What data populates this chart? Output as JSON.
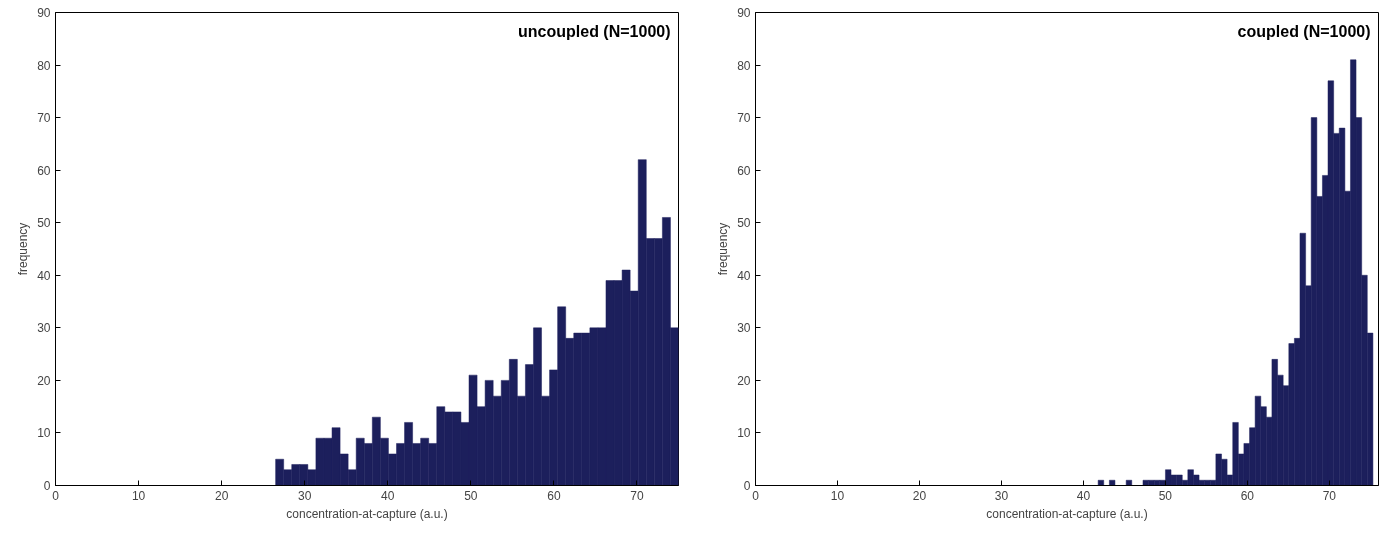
{
  "chart_data": [
    {
      "type": "histogram",
      "xlabel": "concentration-at-capture (a.u.)",
      "ylabel": "frequency",
      "annotations": [
        "uncoupled (N=1000)"
      ],
      "color": "#1c1f5c",
      "bins": [
        26.5,
        27.47,
        28.44,
        29.41,
        30.38,
        31.35,
        32.32,
        33.29,
        34.26,
        35.23,
        36.2,
        37.17,
        38.14,
        39.11,
        40.08,
        41.05,
        42.02,
        42.99,
        43.96,
        44.93,
        45.9,
        46.87,
        47.84,
        48.81,
        49.78,
        50.75,
        51.72,
        52.69,
        53.66,
        54.63,
        55.6,
        56.57,
        57.54,
        58.51,
        59.48,
        60.45,
        61.42,
        62.39,
        63.36,
        64.33,
        65.3,
        66.27,
        67.24,
        68.21,
        69.18,
        70.15,
        71.12,
        72.09,
        73.06,
        74.03,
        75.0
      ],
      "values": [
        5,
        3,
        4,
        4,
        3,
        9,
        9,
        11,
        6,
        3,
        9,
        8,
        13,
        9,
        6,
        8,
        12,
        8,
        9,
        8,
        15,
        14,
        14,
        12,
        21,
        15,
        20,
        17,
        20,
        24,
        17,
        23,
        30,
        17,
        22,
        34,
        28,
        29,
        29,
        30,
        30,
        39,
        39,
        41,
        37,
        62,
        47,
        47,
        51,
        30
      ],
      "xlim": [
        0,
        75
      ],
      "ylim": [
        0,
        90
      ],
      "xticks": [
        0,
        10,
        20,
        30,
        40,
        50,
        60,
        70
      ],
      "yticks": [
        0,
        10,
        20,
        30,
        40,
        50,
        60,
        70,
        80,
        90
      ],
      "grid": false
    },
    {
      "type": "histogram",
      "xlabel": "concentration-at-capture (a.u.)",
      "ylabel": "frequency",
      "annotations": [
        "coupled (N=1000)"
      ],
      "color": "#1c1f5c",
      "bins": [
        41.8,
        42.48,
        43.17,
        43.85,
        44.54,
        45.22,
        45.9,
        46.59,
        47.27,
        47.96,
        48.64,
        49.32,
        50.01,
        50.69,
        51.38,
        52.06,
        52.74,
        53.43,
        54.11,
        54.8,
        55.48,
        56.16,
        56.85,
        57.53,
        58.22,
        58.9,
        59.58,
        60.27,
        60.95,
        61.64,
        62.32,
        63.0,
        63.69,
        64.37,
        65.06,
        65.74,
        66.42,
        67.11,
        67.79,
        68.48,
        69.16,
        69.84,
        70.53,
        71.21,
        71.9,
        72.58,
        73.26,
        73.95,
        74.63,
        75.32,
        76.0
      ],
      "values": [
        1,
        0,
        1,
        0,
        0,
        1,
        0,
        0,
        1,
        1,
        1,
        1,
        3,
        2,
        2,
        1,
        3,
        2,
        1,
        1,
        1,
        6,
        5,
        2,
        12,
        6,
        8,
        11,
        17,
        15,
        13,
        24,
        21,
        19,
        27,
        28,
        48,
        38,
        70,
        55,
        59,
        77,
        67,
        68,
        56,
        81,
        70,
        40,
        29,
        0
      ],
      "xlim": [
        0,
        76
      ],
      "ylim": [
        0,
        90
      ],
      "xticks": [
        0,
        10,
        20,
        30,
        40,
        50,
        60,
        70
      ],
      "yticks": [
        0,
        10,
        20,
        30,
        40,
        50,
        60,
        70,
        80,
        90
      ],
      "grid": false
    }
  ]
}
